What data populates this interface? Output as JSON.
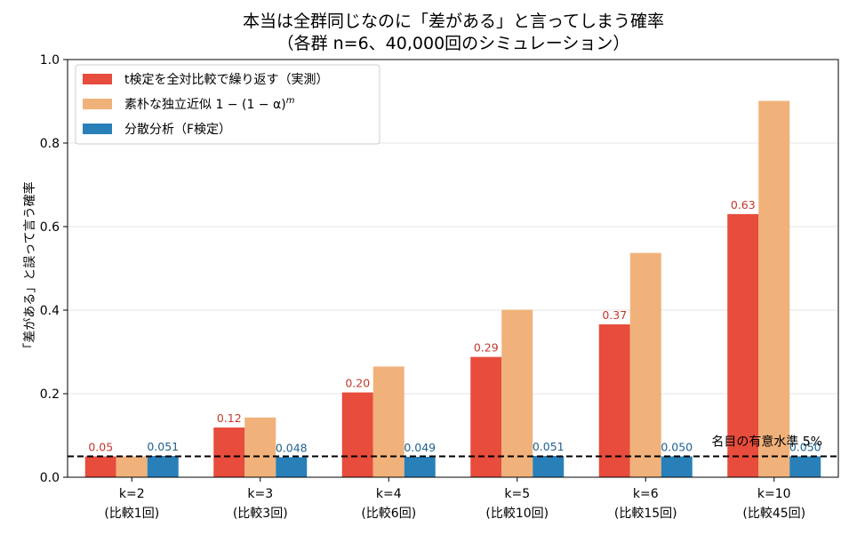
{
  "chart_data": {
    "type": "bar",
    "title": "本当は全群同じなのに「差がある」と言ってしまう確率",
    "subtitle": "（各群 n=6、40,000回のシミュレーション）",
    "ylabel": "「差がある」と誤って言う確率",
    "xlabel": "",
    "ylim": [
      0,
      1.0
    ],
    "yticks": [
      "0.0",
      "0.2",
      "0.4",
      "0.6",
      "0.8",
      "1.0"
    ],
    "ytick_values": [
      0,
      0.2,
      0.4,
      0.6,
      0.8,
      1.0
    ],
    "grid": "horizontal",
    "legend_position": "top-left",
    "categories": [
      {
        "line1": "k=2",
        "line2": "(比較1回)"
      },
      {
        "line1": "k=3",
        "line2": "(比較3回)"
      },
      {
        "line1": "k=4",
        "line2": "(比較6回)"
      },
      {
        "line1": "k=5",
        "line2": "(比較10回)"
      },
      {
        "line1": "k=6",
        "line2": "(比較15回)"
      },
      {
        "line1": "k=10",
        "line2": "(比較45回)"
      }
    ],
    "series": [
      {
        "name": "t検定を全対比較で繰り返す（実測）",
        "color": "#e74c3c",
        "label_color": "#c0392b",
        "values": [
          0.05,
          0.119,
          0.203,
          0.288,
          0.366,
          0.63
        ],
        "labels": [
          "0.05",
          "0.12",
          "0.20",
          "0.29",
          "0.37",
          "0.63"
        ]
      },
      {
        "name": "素朴な独立近似 1 − (1 − α)",
        "name_superscript": "m",
        "color": "#f0b27a",
        "values": [
          0.05,
          0.143,
          0.265,
          0.401,
          0.537,
          0.901
        ],
        "labels": []
      },
      {
        "name": "分散分析（F検定）",
        "color": "#2980b9",
        "label_color": "#1f618d",
        "values": [
          0.051,
          0.048,
          0.049,
          0.051,
          0.05,
          0.05
        ],
        "labels": [
          "0.051",
          "0.048",
          "0.049",
          "0.051",
          "0.050",
          "0.050"
        ]
      }
    ],
    "reference_line": {
      "value": 0.05,
      "label": "名目の有意水準 5%",
      "style": "dashed",
      "color": "#000000"
    }
  }
}
